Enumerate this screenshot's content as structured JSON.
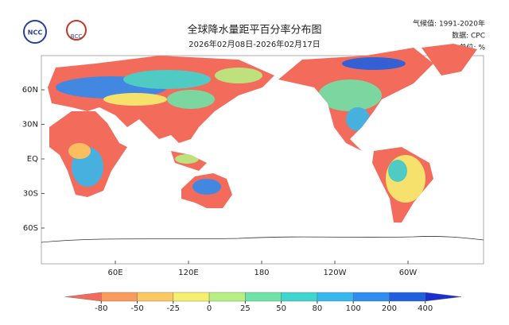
{
  "header": {
    "title": "全球降水量距平百分率分布图",
    "subtitle": "2026年02月08日-2026年02月17日",
    "logos": [
      "NCC",
      "BCC"
    ],
    "info": [
      "气候值: 1991-2020年",
      "数据: CPC",
      "单位: %"
    ]
  },
  "map": {
    "latitude_labels": [
      "60N",
      "30N",
      "EQ",
      "30S",
      "60S"
    ],
    "longitude_labels": [
      "60E",
      "120E",
      "180",
      "120W",
      "60W"
    ]
  },
  "colorbar": {
    "ticks": [
      -80,
      -50,
      -25,
      0,
      25,
      50,
      80,
      100,
      200,
      400
    ],
    "colors": [
      "#f26b5b",
      "#f89b5c",
      "#fbc862",
      "#f5ef6e",
      "#b8ef82",
      "#6fe3a8",
      "#3fd6d0",
      "#36b8ee",
      "#2f8cf0",
      "#2060e0",
      "#1a2fd0"
    ]
  }
}
